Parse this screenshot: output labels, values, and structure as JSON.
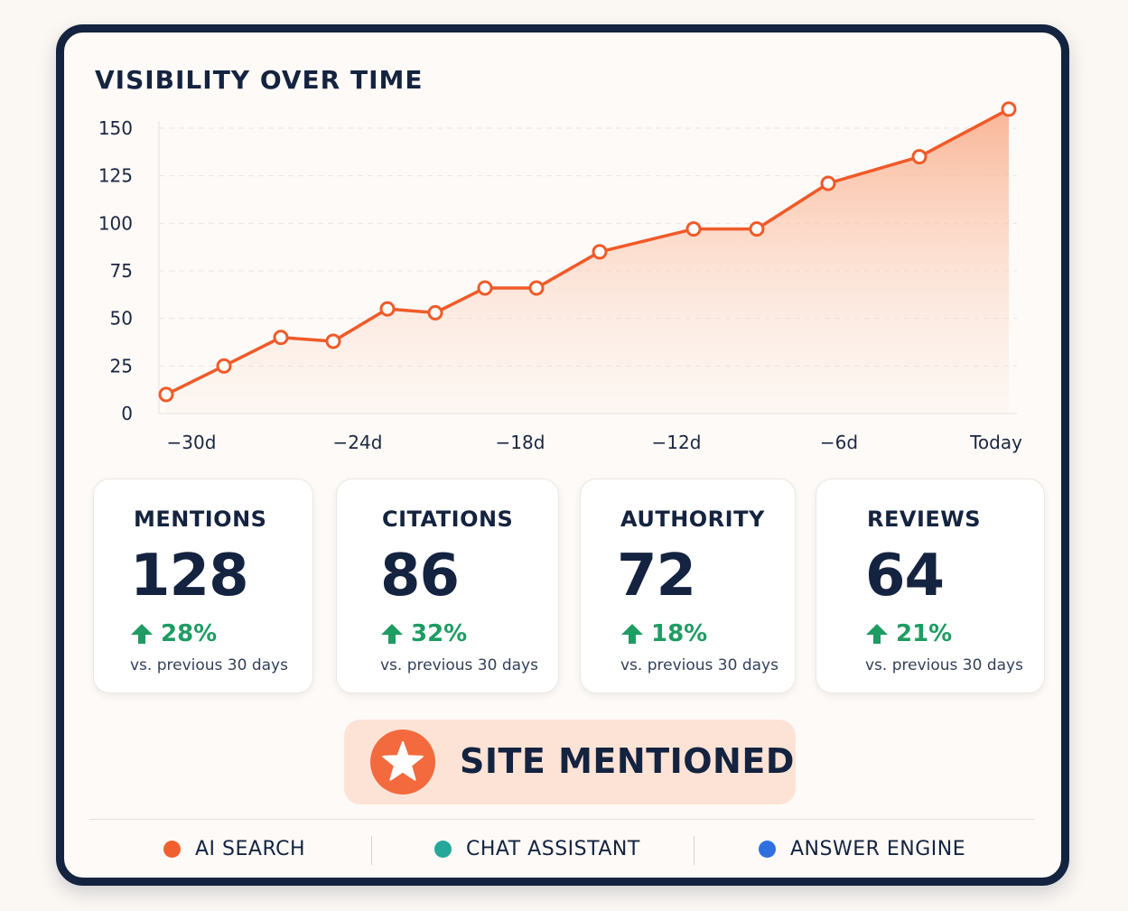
{
  "chart_data": {
    "type": "area",
    "title": "VISIBILITY OVER TIME",
    "x": [
      -30,
      -26,
      -28.5,
      -25.5,
      -24,
      -21,
      -20,
      -18,
      -16,
      -12,
      -10,
      -6,
      -4,
      0
    ],
    "y": [
      10,
      25,
      40,
      38,
      55,
      53,
      66,
      66,
      85,
      97,
      97,
      121,
      135,
      160
    ],
    "ylim": [
      0,
      150
    ],
    "yticks": [
      0,
      25,
      50,
      75,
      100,
      125,
      150
    ],
    "xtick_labels": [
      "−30d",
      "−24d",
      "−18d",
      "−12d",
      "−6d",
      "Today"
    ],
    "grid": true,
    "line_color": "#f05a28",
    "fill_color": "#f9b99c"
  },
  "stats": [
    {
      "label": "MENTIONS",
      "value": "128",
      "change": "28%",
      "note": "vs. previous 30 days"
    },
    {
      "label": "CITATIONS",
      "value": "86",
      "change": "32%",
      "note": "vs. previous 30 days"
    },
    {
      "label": "AUTHORITY",
      "value": "72",
      "change": "18%",
      "note": "vs. previous 30 days"
    },
    {
      "label": "REVIEWS",
      "value": "64",
      "change": "21%",
      "note": "vs. previous 30 days"
    }
  ],
  "banner": {
    "text": "SITE MENTIONED",
    "icon": "star-icon",
    "color": "#f26a3d"
  },
  "legend": [
    {
      "label": "AI SEARCH",
      "color": "#f0602f"
    },
    {
      "label": "CHAT ASSISTANT",
      "color": "#25a89a"
    },
    {
      "label": "ANSWER ENGINE",
      "color": "#2f6fe0"
    }
  ],
  "colors": {
    "positive": "#1e9c63",
    "navy": "#14233f"
  }
}
